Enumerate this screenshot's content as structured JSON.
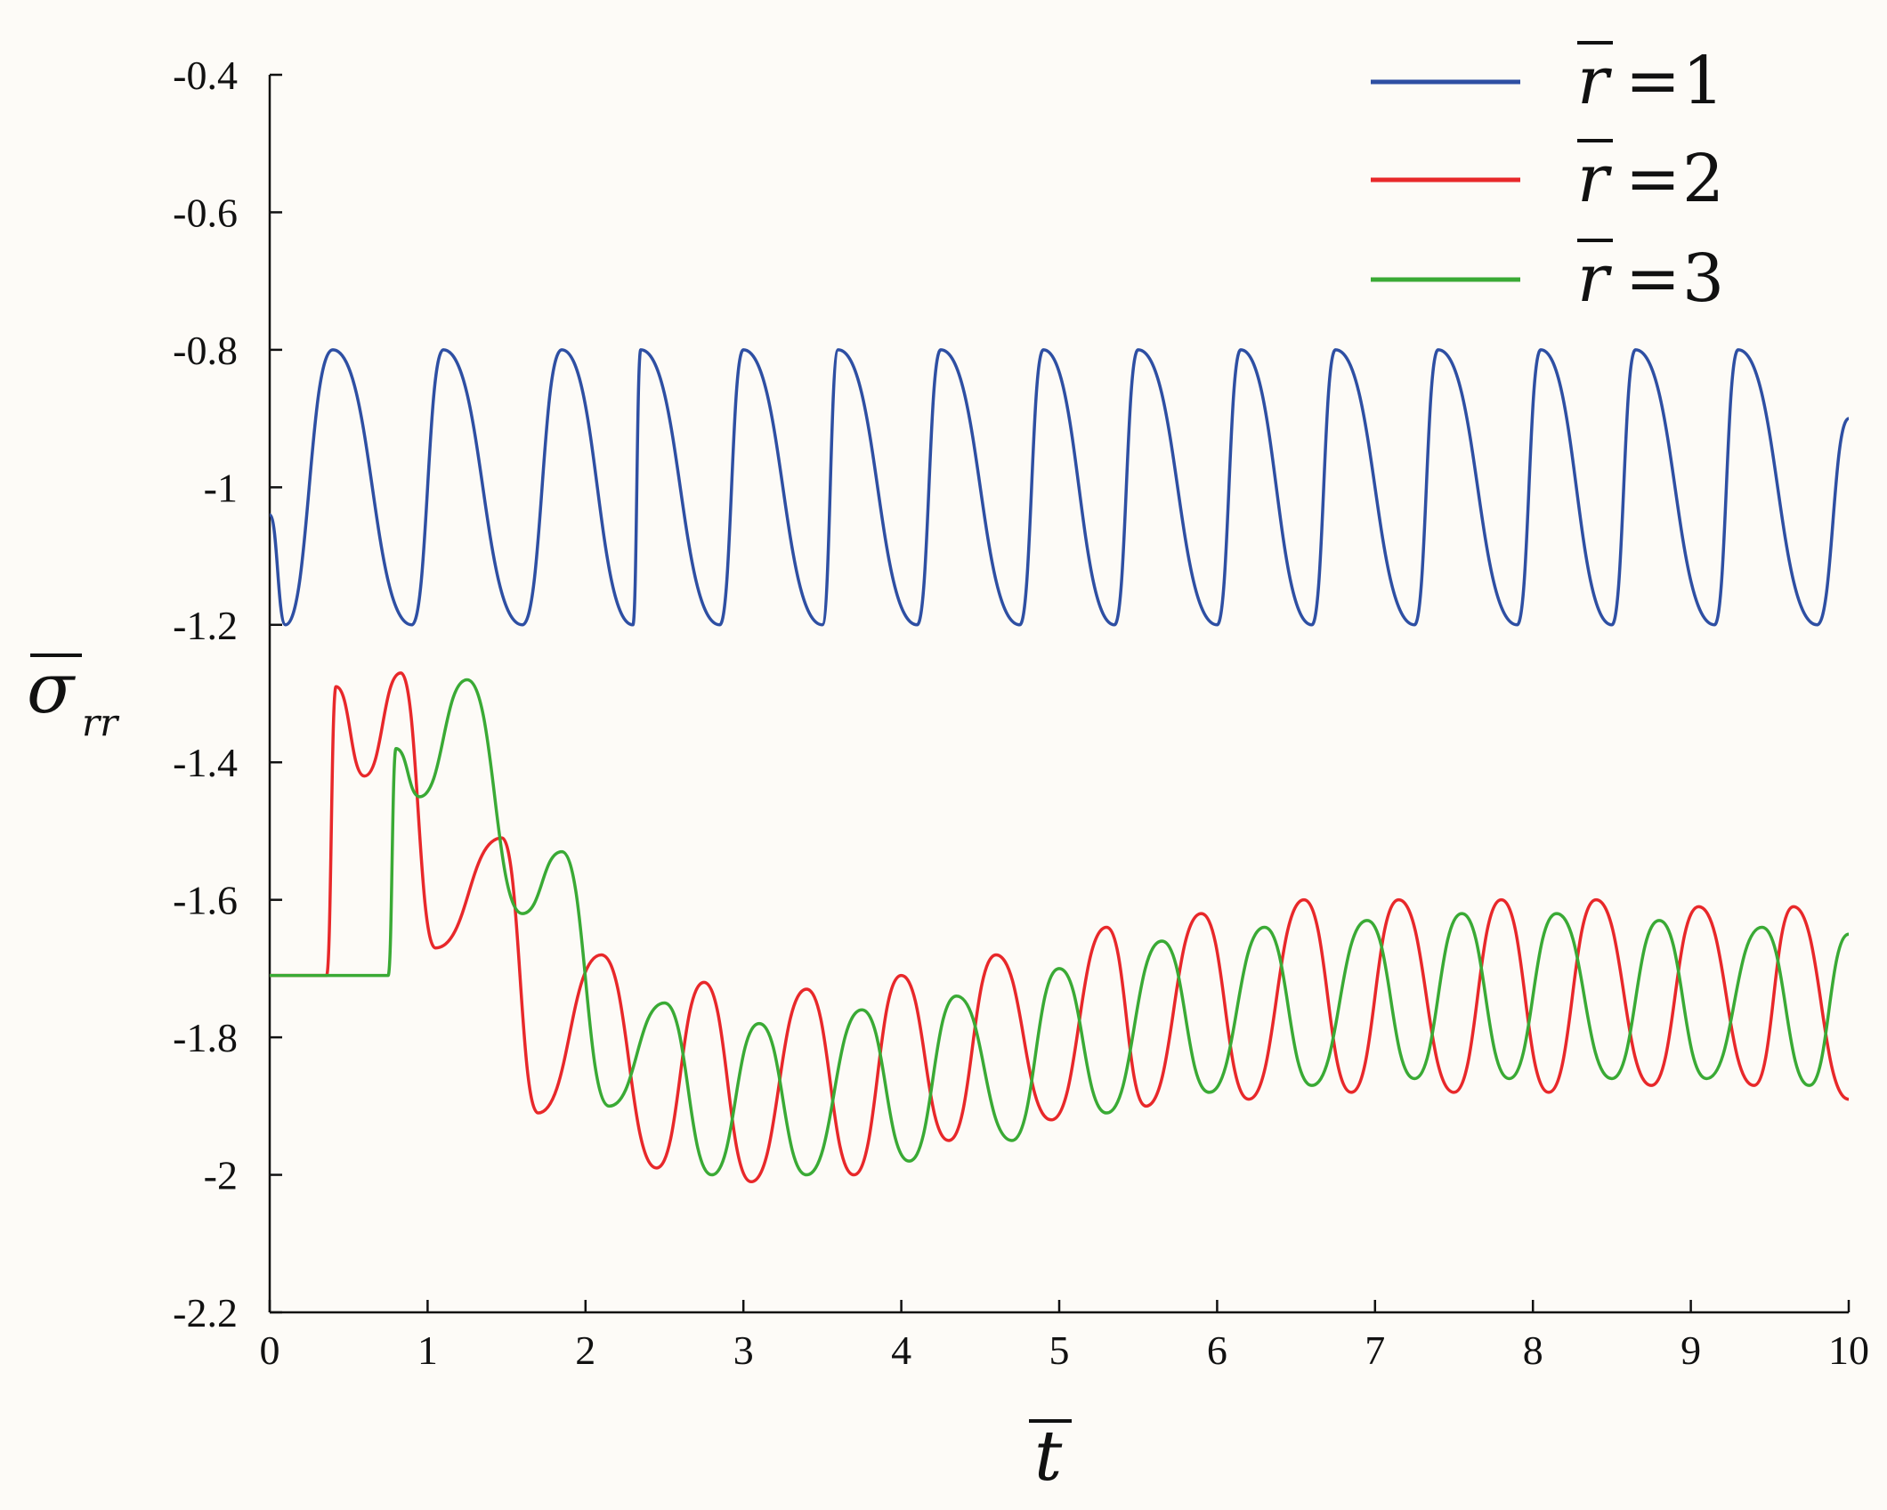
{
  "chart_data": {
    "type": "line",
    "xlabel": "t",
    "ylabel_symbol": "σ",
    "ylabel_subscript": "rr",
    "xlim": [
      0,
      10
    ],
    "ylim": [
      -2.2,
      -0.4
    ],
    "x_ticks": [
      0,
      1,
      2,
      3,
      4,
      5,
      6,
      7,
      8,
      9,
      10
    ],
    "x_tick_labels": [
      "0",
      "1",
      "2",
      "3",
      "4",
      "5",
      "6",
      "7",
      "8",
      "9",
      "10"
    ],
    "y_ticks": [
      -0.4,
      -0.6,
      -0.8,
      -1,
      -1.2,
      -1.4,
      -1.6,
      -1.8,
      -2,
      -2.2
    ],
    "y_tick_labels": [
      "-0.4",
      "-0.6",
      "-0.8",
      "-1",
      "-1.2",
      "-1.4",
      "-1.6",
      "-1.8",
      "-2",
      "-2.2"
    ],
    "grid": false,
    "legend_position": "top-right",
    "series": [
      {
        "name": "r̄ = 1",
        "legend_var": "r",
        "legend_value": "1",
        "color": "#2e4fa3",
        "x": [
          0,
          0.1,
          0.4,
          0.9,
          1.1,
          1.6,
          1.85,
          2.3,
          2.35,
          2.85,
          3.0,
          3.5,
          3.6,
          4.1,
          4.25,
          4.75,
          4.9,
          5.35,
          5.5,
          6.0,
          6.15,
          6.6,
          6.75,
          7.25,
          7.4,
          7.9,
          8.05,
          8.5,
          8.65,
          9.15,
          9.3,
          9.8,
          10.0
        ],
        "y": [
          -1.04,
          -1.2,
          -0.8,
          -1.2,
          -0.8,
          -1.2,
          -0.8,
          -1.2,
          -0.8,
          -1.2,
          -0.8,
          -1.2,
          -0.8,
          -1.2,
          -0.8,
          -1.2,
          -0.8,
          -1.2,
          -0.8,
          -1.2,
          -0.8,
          -1.2,
          -0.8,
          -1.2,
          -0.8,
          -1.2,
          -0.8,
          -1.2,
          -0.8,
          -1.2,
          -0.8,
          -1.2,
          -0.9
        ]
      },
      {
        "name": "r̄ = 2",
        "legend_var": "r",
        "legend_value": "2",
        "color": "#e8282a",
        "x": [
          0,
          0.36,
          0.42,
          0.6,
          0.83,
          1.05,
          1.47,
          1.7,
          2.1,
          2.45,
          2.75,
          3.05,
          3.4,
          3.7,
          4.0,
          4.3,
          4.6,
          4.95,
          5.3,
          5.55,
          5.9,
          6.2,
          6.55,
          6.85,
          7.15,
          7.5,
          7.8,
          8.1,
          8.4,
          8.75,
          9.05,
          9.4,
          9.65,
          10.0
        ],
        "y": [
          -1.71,
          -1.71,
          -1.29,
          -1.42,
          -1.27,
          -1.67,
          -1.51,
          -1.91,
          -1.68,
          -1.99,
          -1.72,
          -2.01,
          -1.73,
          -2.0,
          -1.71,
          -1.95,
          -1.68,
          -1.92,
          -1.64,
          -1.9,
          -1.62,
          -1.89,
          -1.6,
          -1.88,
          -1.6,
          -1.88,
          -1.6,
          -1.88,
          -1.6,
          -1.87,
          -1.61,
          -1.87,
          -1.61,
          -1.89
        ]
      },
      {
        "name": "r̄ = 3",
        "legend_var": "r",
        "legend_value": "3",
        "color": "#3aaa35",
        "x": [
          0,
          0.75,
          0.8,
          0.95,
          1.25,
          1.6,
          1.85,
          2.15,
          2.5,
          2.8,
          3.1,
          3.4,
          3.75,
          4.05,
          4.35,
          4.7,
          5.0,
          5.3,
          5.65,
          5.95,
          6.3,
          6.6,
          6.95,
          7.25,
          7.55,
          7.85,
          8.15,
          8.5,
          8.8,
          9.1,
          9.45,
          9.75,
          10.0
        ],
        "y": [
          -1.71,
          -1.71,
          -1.38,
          -1.45,
          -1.28,
          -1.62,
          -1.53,
          -1.9,
          -1.75,
          -2.0,
          -1.78,
          -2.0,
          -1.76,
          -1.98,
          -1.74,
          -1.95,
          -1.7,
          -1.91,
          -1.66,
          -1.88,
          -1.64,
          -1.87,
          -1.63,
          -1.86,
          -1.62,
          -1.86,
          -1.62,
          -1.86,
          -1.63,
          -1.86,
          -1.64,
          -1.87,
          -1.65
        ]
      }
    ]
  }
}
